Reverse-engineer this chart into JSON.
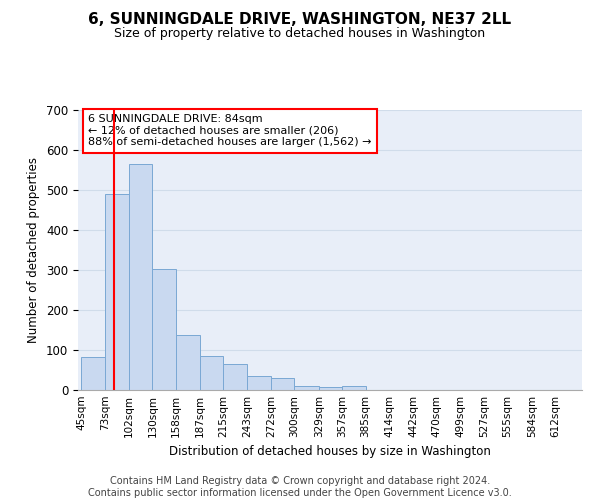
{
  "title": "6, SUNNINGDALE DRIVE, WASHINGTON, NE37 2LL",
  "subtitle": "Size of property relative to detached houses in Washington",
  "xlabel": "Distribution of detached houses by size in Washington",
  "ylabel": "Number of detached properties",
  "bar_color": "#c9d9f0",
  "bar_edge_color": "#7aa8d4",
  "grid_color": "#d0dcea",
  "background_color": "#e8eef8",
  "red_line_x": 84,
  "categories": [
    "45sqm",
    "73sqm",
    "102sqm",
    "130sqm",
    "158sqm",
    "187sqm",
    "215sqm",
    "243sqm",
    "272sqm",
    "300sqm",
    "329sqm",
    "357sqm",
    "385sqm",
    "414sqm",
    "442sqm",
    "470sqm",
    "499sqm",
    "527sqm",
    "555sqm",
    "584sqm",
    "612sqm"
  ],
  "bin_edges": [
    45,
    73,
    102,
    130,
    158,
    187,
    215,
    243,
    272,
    300,
    329,
    357,
    385,
    414,
    442,
    470,
    499,
    527,
    555,
    584,
    612
  ],
  "values": [
    83,
    490,
    565,
    303,
    138,
    86,
    64,
    36,
    30,
    10,
    7,
    11,
    0,
    0,
    0,
    0,
    0,
    0,
    0,
    0,
    0
  ],
  "ylim": [
    0,
    700
  ],
  "yticks": [
    0,
    100,
    200,
    300,
    400,
    500,
    600,
    700
  ],
  "annotation_box_text": [
    "6 SUNNINGDALE DRIVE: 84sqm",
    "← 12% of detached houses are smaller (206)",
    "88% of semi-detached houses are larger (1,562) →"
  ],
  "annotation_box_color": "white",
  "annotation_box_edge_color": "red",
  "footer_lines": [
    "Contains HM Land Registry data © Crown copyright and database right 2024.",
    "Contains public sector information licensed under the Open Government Licence v3.0."
  ],
  "footer_fontsize": 7.0,
  "title_fontsize": 11,
  "subtitle_fontsize": 9
}
